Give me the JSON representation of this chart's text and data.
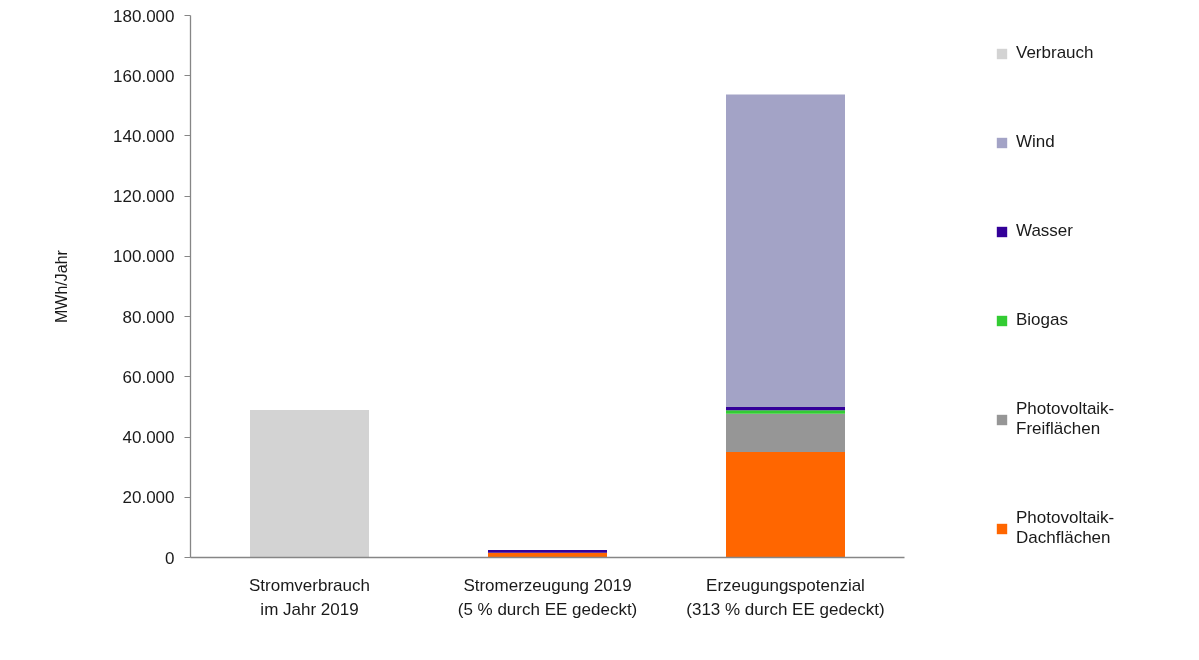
{
  "chart_data": {
    "type": "bar",
    "stacked": true,
    "ylabel": "MWh/Jahr",
    "categories": [
      "Stromverbrauch\nim Jahr 2019",
      "Stromerzeugung 2019\n(5 % durch EE gedeckt)",
      "Erzeugungspotenzial\n(313 % durch EE gedeckt)"
    ],
    "series": [
      {
        "name": "Photovoltaik-\nDachflächen",
        "color": "#ff6600",
        "values": [
          null,
          1600,
          35000
        ]
      },
      {
        "name": "Photovoltaik-\nFreiflächen",
        "color": "#969696",
        "values": [
          null,
          null,
          12700
        ]
      },
      {
        "name": "Biogas",
        "color": "#33cc33",
        "values": [
          null,
          null,
          1200
        ]
      },
      {
        "name": "Wasser",
        "color": "#330099",
        "values": [
          null,
          900,
          1100
        ]
      },
      {
        "name": "Wind",
        "color": "#a3a3c6",
        "values": [
          null,
          null,
          103800
        ]
      },
      {
        "name": "Verbrauch",
        "color": "#d3d3d3",
        "values": [
          49000,
          null,
          null
        ]
      }
    ],
    "ylim": [
      0,
      180000
    ],
    "yticks": [
      {
        "value": 0,
        "label": "0"
      },
      {
        "value": 20000,
        "label": "20.000"
      },
      {
        "value": 40000,
        "label": "40.000"
      },
      {
        "value": 60000,
        "label": "60.000"
      },
      {
        "value": 80000,
        "label": "80.000"
      },
      {
        "value": 100000,
        "label": "100.000"
      },
      {
        "value": 120000,
        "label": "120.000"
      },
      {
        "value": 140000,
        "label": "140.000"
      },
      {
        "value": 160000,
        "label": "160.000"
      },
      {
        "value": 180000,
        "label": "180.000"
      }
    ],
    "legend": "right"
  }
}
